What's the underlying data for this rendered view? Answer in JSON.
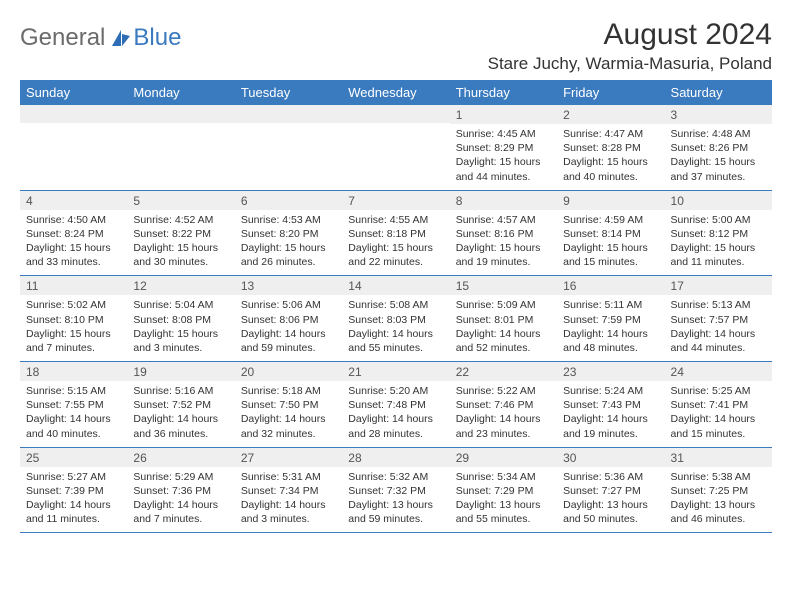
{
  "logo": {
    "general": "General",
    "blue": "Blue"
  },
  "title": "August 2024",
  "location": "Stare Juchy, Warmia-Masuria, Poland",
  "colors": {
    "header_bg": "#3a7abf",
    "header_text": "#ffffff",
    "daynum_bg": "#efefef",
    "page_bg": "#ffffff",
    "text": "#333333",
    "logo_gray": "#6b6b6b",
    "logo_blue": "#3a7abf",
    "row_border": "#3a7abf"
  },
  "dayHeaders": [
    "Sunday",
    "Monday",
    "Tuesday",
    "Wednesday",
    "Thursday",
    "Friday",
    "Saturday"
  ],
  "weeks": [
    [
      null,
      null,
      null,
      null,
      {
        "n": "1",
        "sr": "4:45 AM",
        "ss": "8:29 PM",
        "dl": "15 hours and 44 minutes."
      },
      {
        "n": "2",
        "sr": "4:47 AM",
        "ss": "8:28 PM",
        "dl": "15 hours and 40 minutes."
      },
      {
        "n": "3",
        "sr": "4:48 AM",
        "ss": "8:26 PM",
        "dl": "15 hours and 37 minutes."
      }
    ],
    [
      {
        "n": "4",
        "sr": "4:50 AM",
        "ss": "8:24 PM",
        "dl": "15 hours and 33 minutes."
      },
      {
        "n": "5",
        "sr": "4:52 AM",
        "ss": "8:22 PM",
        "dl": "15 hours and 30 minutes."
      },
      {
        "n": "6",
        "sr": "4:53 AM",
        "ss": "8:20 PM",
        "dl": "15 hours and 26 minutes."
      },
      {
        "n": "7",
        "sr": "4:55 AM",
        "ss": "8:18 PM",
        "dl": "15 hours and 22 minutes."
      },
      {
        "n": "8",
        "sr": "4:57 AM",
        "ss": "8:16 PM",
        "dl": "15 hours and 19 minutes."
      },
      {
        "n": "9",
        "sr": "4:59 AM",
        "ss": "8:14 PM",
        "dl": "15 hours and 15 minutes."
      },
      {
        "n": "10",
        "sr": "5:00 AM",
        "ss": "8:12 PM",
        "dl": "15 hours and 11 minutes."
      }
    ],
    [
      {
        "n": "11",
        "sr": "5:02 AM",
        "ss": "8:10 PM",
        "dl": "15 hours and 7 minutes."
      },
      {
        "n": "12",
        "sr": "5:04 AM",
        "ss": "8:08 PM",
        "dl": "15 hours and 3 minutes."
      },
      {
        "n": "13",
        "sr": "5:06 AM",
        "ss": "8:06 PM",
        "dl": "14 hours and 59 minutes."
      },
      {
        "n": "14",
        "sr": "5:08 AM",
        "ss": "8:03 PM",
        "dl": "14 hours and 55 minutes."
      },
      {
        "n": "15",
        "sr": "5:09 AM",
        "ss": "8:01 PM",
        "dl": "14 hours and 52 minutes."
      },
      {
        "n": "16",
        "sr": "5:11 AM",
        "ss": "7:59 PM",
        "dl": "14 hours and 48 minutes."
      },
      {
        "n": "17",
        "sr": "5:13 AM",
        "ss": "7:57 PM",
        "dl": "14 hours and 44 minutes."
      }
    ],
    [
      {
        "n": "18",
        "sr": "5:15 AM",
        "ss": "7:55 PM",
        "dl": "14 hours and 40 minutes."
      },
      {
        "n": "19",
        "sr": "5:16 AM",
        "ss": "7:52 PM",
        "dl": "14 hours and 36 minutes."
      },
      {
        "n": "20",
        "sr": "5:18 AM",
        "ss": "7:50 PM",
        "dl": "14 hours and 32 minutes."
      },
      {
        "n": "21",
        "sr": "5:20 AM",
        "ss": "7:48 PM",
        "dl": "14 hours and 28 minutes."
      },
      {
        "n": "22",
        "sr": "5:22 AM",
        "ss": "7:46 PM",
        "dl": "14 hours and 23 minutes."
      },
      {
        "n": "23",
        "sr": "5:24 AM",
        "ss": "7:43 PM",
        "dl": "14 hours and 19 minutes."
      },
      {
        "n": "24",
        "sr": "5:25 AM",
        "ss": "7:41 PM",
        "dl": "14 hours and 15 minutes."
      }
    ],
    [
      {
        "n": "25",
        "sr": "5:27 AM",
        "ss": "7:39 PM",
        "dl": "14 hours and 11 minutes."
      },
      {
        "n": "26",
        "sr": "5:29 AM",
        "ss": "7:36 PM",
        "dl": "14 hours and 7 minutes."
      },
      {
        "n": "27",
        "sr": "5:31 AM",
        "ss": "7:34 PM",
        "dl": "14 hours and 3 minutes."
      },
      {
        "n": "28",
        "sr": "5:32 AM",
        "ss": "7:32 PM",
        "dl": "13 hours and 59 minutes."
      },
      {
        "n": "29",
        "sr": "5:34 AM",
        "ss": "7:29 PM",
        "dl": "13 hours and 55 minutes."
      },
      {
        "n": "30",
        "sr": "5:36 AM",
        "ss": "7:27 PM",
        "dl": "13 hours and 50 minutes."
      },
      {
        "n": "31",
        "sr": "5:38 AM",
        "ss": "7:25 PM",
        "dl": "13 hours and 46 minutes."
      }
    ]
  ],
  "labels": {
    "sunrise": "Sunrise: ",
    "sunset": "Sunset: ",
    "daylight": "Daylight: "
  }
}
